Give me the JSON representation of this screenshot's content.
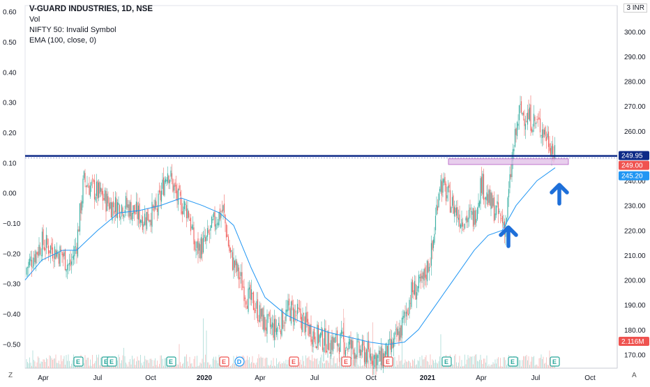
{
  "legend": {
    "title": "V-GUARD INDUSTRIES, 1D, NSE",
    "line2": "Vol",
    "line3": "NIFTY 50: Invalid Symbol",
    "line4": "EMA (100, close, 0)"
  },
  "axis": {
    "currency": "INR",
    "currency_label": "3 INR",
    "zoom_icon": "Z",
    "auto_icon": "A"
  },
  "colors": {
    "up": "#26a69a",
    "down": "#ef5350",
    "ema": "#2196f3",
    "resistance": "#0d2a87",
    "zone_fill": "#e1bee7",
    "zone_border": "#9c27b0",
    "arrow": "#1e6fd9"
  },
  "chart_data": {
    "type": "candlestick",
    "left_axis": {
      "ticks": [
        "0.60",
        "0.50",
        "0.40",
        "0.30",
        "0.20",
        "0.10",
        "0.00",
        "−0.10",
        "−0.20",
        "−0.30",
        "−0.40",
        "−0.50"
      ],
      "range": [
        -0.58,
        0.62
      ]
    },
    "right_axis": {
      "ticks": [
        "300.00",
        "290.00",
        "280.00",
        "270.00",
        "260.00",
        "250.00",
        "240.00",
        "230.00",
        "220.00",
        "210.00",
        "200.00",
        "190.00",
        "180.00",
        "170.00"
      ],
      "range": [
        164.5,
        310.5
      ]
    },
    "x_ticks": [
      "Apr",
      "Jul",
      "Oct",
      "2020",
      "Apr",
      "Jul",
      "Oct",
      "2021",
      "Apr",
      "Jul",
      "Oct"
    ],
    "price_series": {
      "dates": [
        "2019-02",
        "2019-03",
        "2019-04",
        "2019-05",
        "2019-06",
        "2019-07",
        "2019-08",
        "2019-09",
        "2019-10",
        "2019-11",
        "2019-12",
        "2020-01",
        "2020-02",
        "2020-03",
        "2020-04",
        "2020-05",
        "2020-06",
        "2020-07",
        "2020-08",
        "2020-09",
        "2020-10",
        "2020-11",
        "2020-12",
        "2021-01",
        "2021-02",
        "2021-03",
        "2021-04",
        "2021-05",
        "2021-06",
        "2021-07",
        "2021-08"
      ],
      "close": [
        202,
        215,
        212,
        205,
        238,
        232,
        228,
        225,
        227,
        245,
        230,
        228,
        225,
        205,
        195,
        178,
        185,
        188,
        180,
        175,
        170,
        172,
        195,
        215,
        238,
        230,
        222,
        218,
        270,
        262,
        245
      ]
    },
    "ema_100": [
      198,
      205,
      208,
      210,
      218,
      224,
      226,
      226,
      227,
      230,
      232,
      230,
      226,
      218,
      205,
      195,
      188,
      185,
      180,
      178,
      176,
      175,
      180,
      195,
      210,
      218,
      220,
      222,
      235,
      240,
      245.2
    ],
    "price_labels": [
      "249.95",
      "249.00",
      "245.20"
    ],
    "volume_label": "2.116M",
    "events": [
      "E",
      "E",
      "E",
      "E",
      "E",
      "D",
      "E",
      "E",
      "E",
      "E",
      "E",
      "E",
      "E",
      "E"
    ],
    "annotations": {
      "resistance_level": 249.95,
      "support_zone": [
        246.5,
        248.8
      ]
    }
  }
}
